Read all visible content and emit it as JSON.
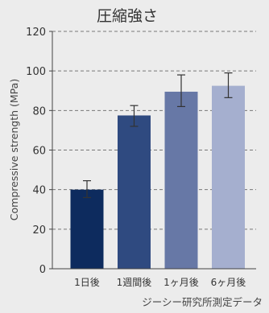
{
  "chart_data": {
    "type": "bar",
    "title": "圧縮強さ",
    "ylabel": "Compressive strength (MPa)",
    "xlabel": "",
    "categories": [
      "1日後",
      "1週間後",
      "1ヶ月後",
      "6ヶ月後"
    ],
    "values": [
      40,
      77.5,
      89.5,
      92.5
    ],
    "error_low": [
      36,
      72,
      82,
      86.5
    ],
    "error_high": [
      44.5,
      82.5,
      98,
      99
    ],
    "ylim": [
      0,
      120
    ],
    "yticks": [
      0,
      20,
      40,
      60,
      80,
      100,
      120
    ],
    "grid": true,
    "colors": [
      "#0d2b5e",
      "#2f4a80",
      "#6778a6",
      "#a5afcf"
    ],
    "source": "ジーシー研究所測定データ"
  }
}
